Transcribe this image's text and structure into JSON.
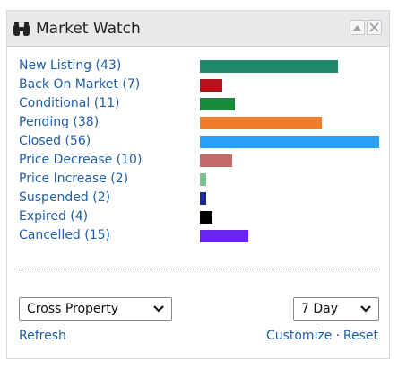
{
  "widget": {
    "title": "Market Watch",
    "icon": "binoculars-icon"
  },
  "rows": [
    {
      "label": "New Listing (43)",
      "count": 43,
      "color": "#1e8a6a"
    },
    {
      "label": "Back On Market (7)",
      "count": 7,
      "color": "#b3131b"
    },
    {
      "label": "Conditional (11)",
      "count": 11,
      "color": "#1a8a3a"
    },
    {
      "label": "Pending (38)",
      "count": 38,
      "color": "#f07c2e"
    },
    {
      "label": "Closed (56)",
      "count": 56,
      "color": "#2aa0f4"
    },
    {
      "label": "Price Decrease (10)",
      "count": 10,
      "color": "#c06a6a"
    },
    {
      "label": "Price Increase (2)",
      "count": 2,
      "color": "#7ac48c"
    },
    {
      "label": "Suspended (2)",
      "count": 2,
      "color": "#1a2a9a"
    },
    {
      "label": "Expired (4)",
      "count": 4,
      "color": "#000000"
    },
    {
      "label": "Cancelled (15)",
      "count": 15,
      "color": "#6a24f0"
    }
  ],
  "controls": {
    "property_select": "Cross Property",
    "days_select": "7 Day",
    "refresh": "Refresh",
    "customize": "Customize",
    "separator": "·",
    "reset": "Reset"
  }
}
